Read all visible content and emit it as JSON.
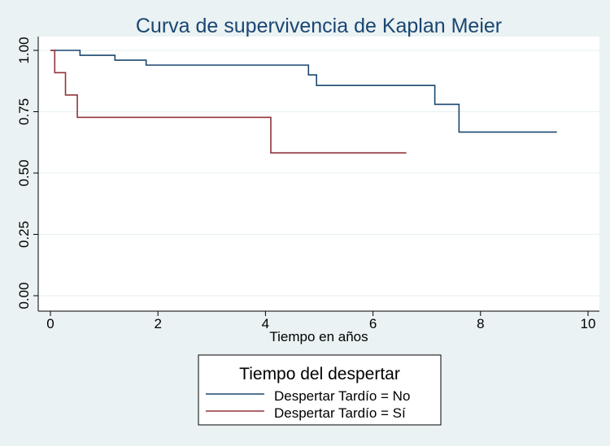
{
  "chart_data": {
    "type": "line",
    "title": "Curva de supervivencia de Kaplan Meier",
    "xlabel": "Tiempo en años",
    "ylabel": "",
    "xlim": [
      0,
      10
    ],
    "ylim": [
      0,
      1
    ],
    "x_ticks": [
      "0",
      "2",
      "4",
      "6",
      "8",
      "10"
    ],
    "y_ticks": [
      "0.00",
      "0.25",
      "0.50",
      "0.75",
      "1.00"
    ],
    "grid": true,
    "step": true,
    "legend": {
      "title": "Tiempo del despertar",
      "placement": "bottom-center"
    },
    "series": [
      {
        "name": "Despertar Tardío = No",
        "color": "#1a476f",
        "x": [
          0,
          0.55,
          1.2,
          1.78,
          4.8,
          4.95,
          7.15,
          7.6,
          9.42
        ],
        "y": [
          1.0,
          0.98,
          0.96,
          0.94,
          0.9,
          0.857,
          0.78,
          0.667,
          0.667
        ]
      },
      {
        "name": "Despertar Tardío = Sí",
        "color": "#90353b",
        "x": [
          0,
          0.08,
          0.28,
          0.5,
          4.1,
          6.62
        ],
        "y": [
          1.0,
          0.909,
          0.818,
          0.727,
          0.582,
          0.582
        ]
      }
    ]
  },
  "colors": {
    "background": "#eaf2f3",
    "plot_background": "#ffffff",
    "grid": "#eaf2f3",
    "title": "#1a4672"
  }
}
